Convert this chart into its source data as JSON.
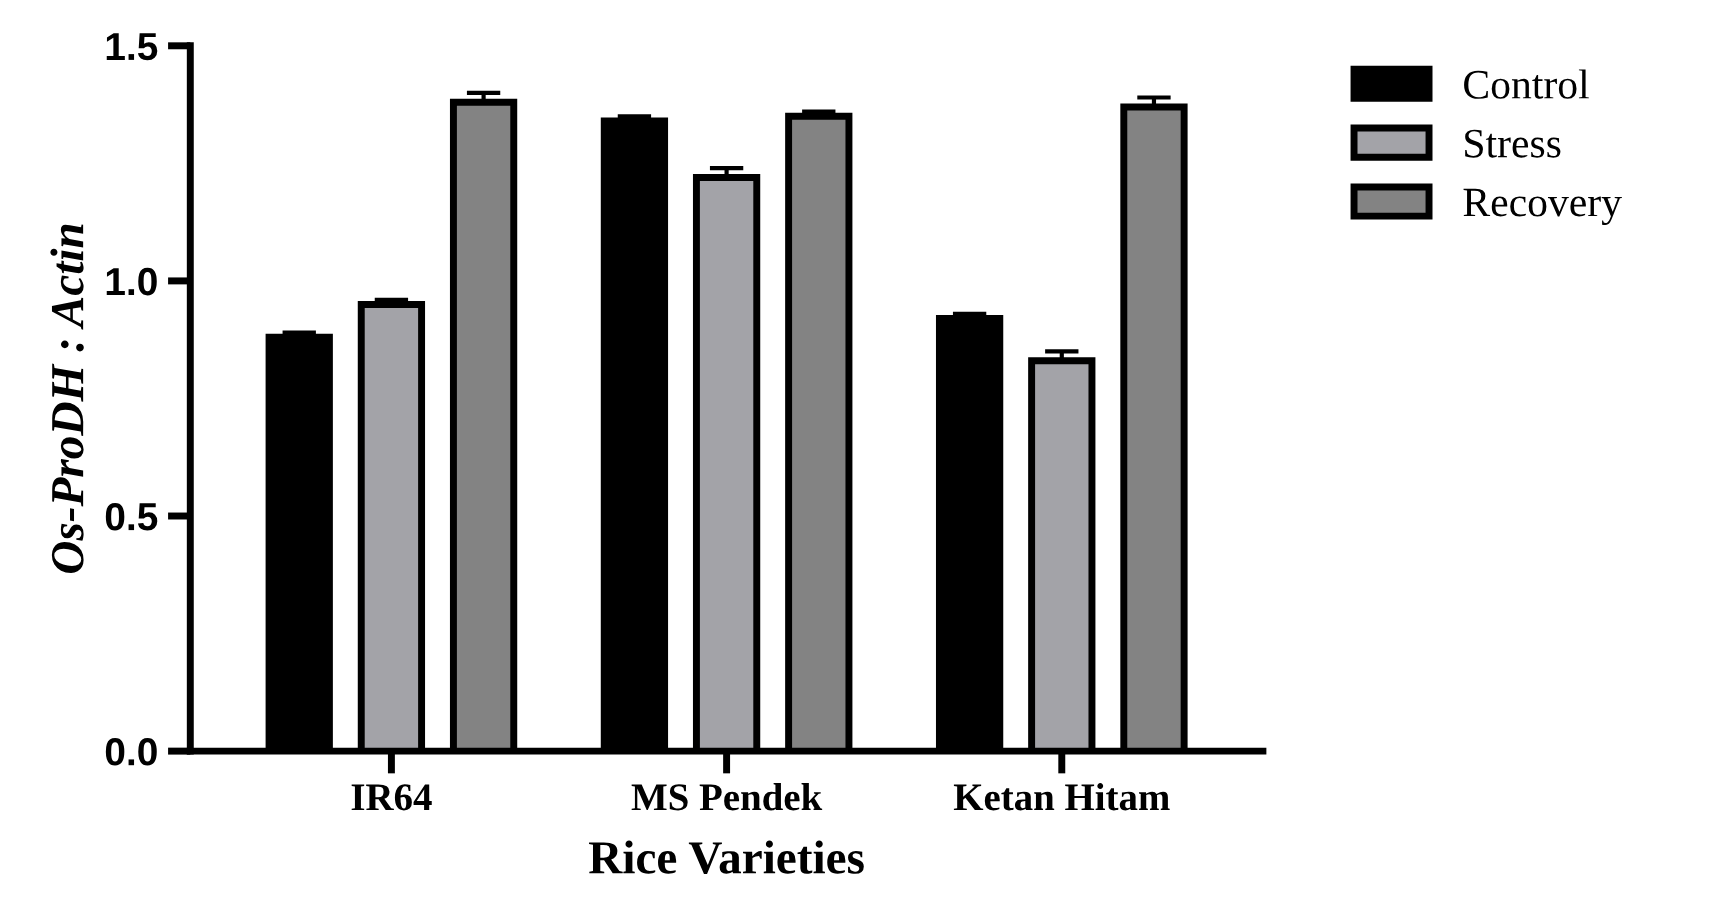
{
  "chart_data": {
    "type": "bar",
    "xlabel": "Rice Varieties",
    "ylabel": "Os-ProDH : Actin",
    "categories": [
      "IR64",
      "MS Pendek",
      "Ketan Hitam"
    ],
    "series": [
      {
        "name": "Control",
        "color": "#000000",
        "values": [
          0.88,
          1.34,
          0.92
        ],
        "errors": [
          [
            0.88,
            0.89
          ],
          [
            1.34,
            1.35
          ],
          [
            0.92,
            0.93
          ]
        ]
      },
      {
        "name": "Stress",
        "color": "#a3a3a8",
        "values": [
          0.95,
          1.22,
          0.83
        ],
        "errors": [
          [
            0.95,
            0.96
          ],
          [
            1.22,
            1.24
          ],
          [
            0.83,
            0.85
          ]
        ]
      },
      {
        "name": "Recovery",
        "color": "#838383",
        "values": [
          1.38,
          1.35,
          1.37
        ],
        "errors": [
          [
            1.38,
            1.4
          ],
          [
            1.35,
            1.36
          ],
          [
            1.37,
            1.39
          ]
        ]
      }
    ],
    "ylim": [
      0,
      1.5
    ],
    "yticks": [
      {
        "value": 0,
        "label": "0.0"
      },
      {
        "value": 0.5,
        "label": "0.5"
      },
      {
        "value": 1,
        "label": "1.0"
      },
      {
        "value": 1.5,
        "label": "1.5"
      }
    ],
    "grid": false,
    "legend": "top right"
  }
}
